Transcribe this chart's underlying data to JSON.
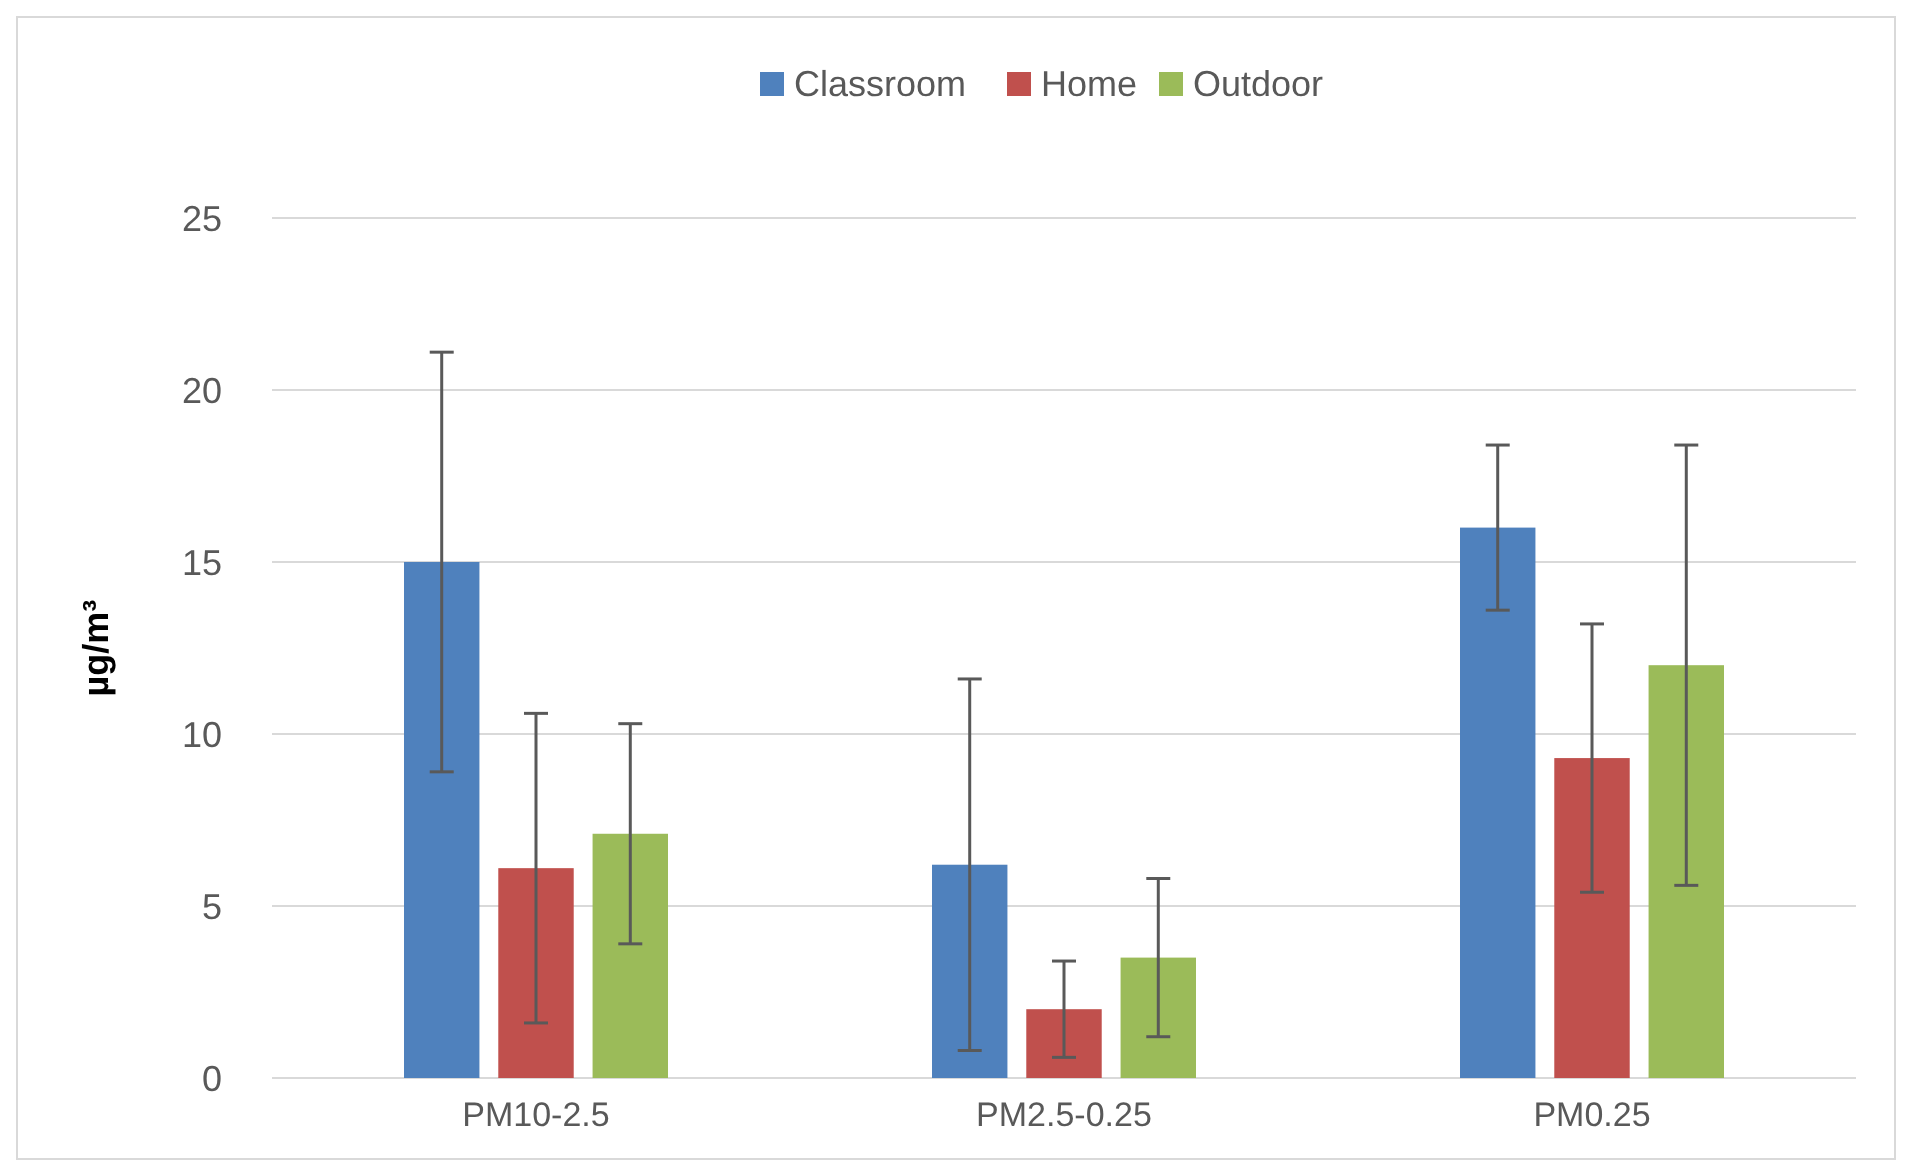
{
  "chart_data": {
    "type": "bar",
    "ylabel": "µg/m³",
    "categories": [
      "PM10-2.5",
      "PM2.5-0.25",
      "PM0.25"
    ],
    "series": [
      {
        "name": "Classroom",
        "color": "#4f81bd",
        "values": [
          15,
          6.2,
          16
        ],
        "errors": [
          [
            8.9,
            21.1
          ],
          [
            0.8,
            11.6
          ],
          [
            13.6,
            18.4
          ]
        ]
      },
      {
        "name": "Home",
        "color": "#c0504d",
        "values": [
          6.1,
          2,
          9.3
        ],
        "errors": [
          [
            1.6,
            10.6
          ],
          [
            0.6,
            3.4
          ],
          [
            5.4,
            13.2
          ]
        ]
      },
      {
        "name": "Outdoor",
        "color": "#9bbb59",
        "values": [
          7.1,
          3.5,
          12
        ],
        "errors": [
          [
            3.9,
            10.3
          ],
          [
            1.2,
            5.8
          ],
          [
            5.6,
            18.4
          ]
        ]
      }
    ],
    "ylim": [
      0,
      25
    ],
    "yticks": [
      0,
      5,
      10,
      15,
      20,
      25
    ],
    "grid": "y",
    "legend": "top"
  }
}
